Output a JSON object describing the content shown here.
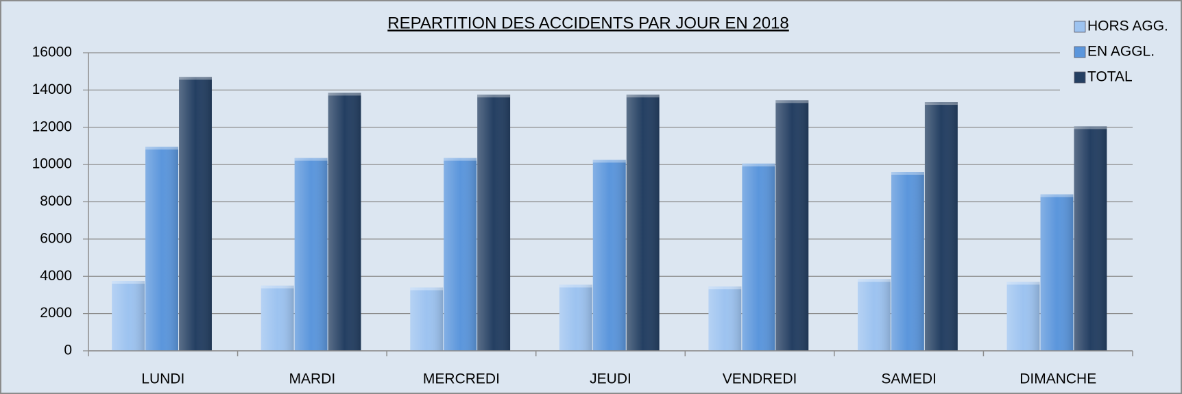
{
  "chart_data": {
    "type": "bar",
    "title": "REPARTITION DES ACCIDENTS PAR JOUR EN 2018",
    "categories": [
      "LUNDI",
      "MARDI",
      "MERCREDI",
      "JEUDI",
      "VENDREDI",
      "SAMEDI",
      "DIMANCHE"
    ],
    "series": [
      {
        "name": "HORS AGG.",
        "color": "#9dc3f0",
        "values": [
          3750,
          3500,
          3400,
          3550,
          3450,
          3850,
          3700
        ]
      },
      {
        "name": "EN AGGL.",
        "color": "#5b96dc",
        "values": [
          10950,
          10350,
          10350,
          10250,
          10050,
          9600,
          8400
        ]
      },
      {
        "name": "TOTAL",
        "color": "#243f62",
        "values": [
          14700,
          13850,
          13750,
          13750,
          13450,
          13350,
          12050
        ]
      }
    ],
    "ylim": [
      0,
      16000
    ],
    "yticks": [
      0,
      2000,
      4000,
      6000,
      8000,
      10000,
      12000,
      14000,
      16000
    ],
    "grid": true,
    "legend": "upper right"
  }
}
